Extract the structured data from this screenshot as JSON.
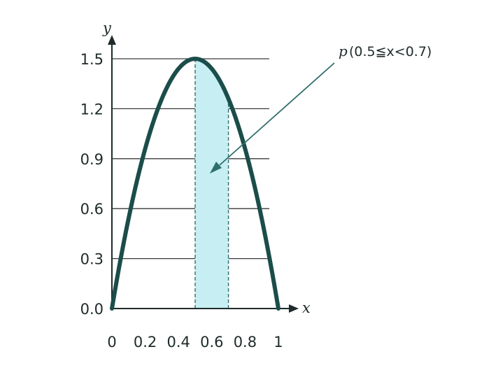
{
  "chart_data": {
    "type": "line",
    "title": "",
    "xlabel": "x",
    "ylabel": "y",
    "xlim": [
      0,
      1
    ],
    "ylim": [
      0,
      1.5
    ],
    "x_ticks": [
      "0",
      "0.2",
      "0.4",
      "0.6",
      "0.8",
      "1"
    ],
    "x_tick_values": [
      0,
      0.2,
      0.4,
      0.6,
      0.8,
      1
    ],
    "y_ticks": [
      "0.0",
      "0.3",
      "0.6",
      "0.9",
      "1.2",
      "1.5"
    ],
    "y_tick_values": [
      0,
      0.3,
      0.6,
      0.9,
      1.2,
      1.5
    ],
    "grid": "horizontal",
    "series": [
      {
        "function": "y = 6x(1-x)",
        "x": [
          0,
          0.1,
          0.2,
          0.3,
          0.4,
          0.5,
          0.6,
          0.7,
          0.8,
          0.9,
          1
        ],
        "y": [
          0,
          0.54,
          0.96,
          1.26,
          1.44,
          1.5,
          1.44,
          1.26,
          0.96,
          0.54,
          0
        ]
      }
    ],
    "shaded_region": {
      "x_from": 0.5,
      "x_to": 0.7
    },
    "annotation": {
      "text": "p(0.5≦x<0.7)",
      "p": "p",
      "interval": "(0.5≦x<0.7)"
    },
    "colors": {
      "curve": "#1b4d4a",
      "fill": "#c6eef3",
      "grid": "#3a3a3a"
    }
  }
}
